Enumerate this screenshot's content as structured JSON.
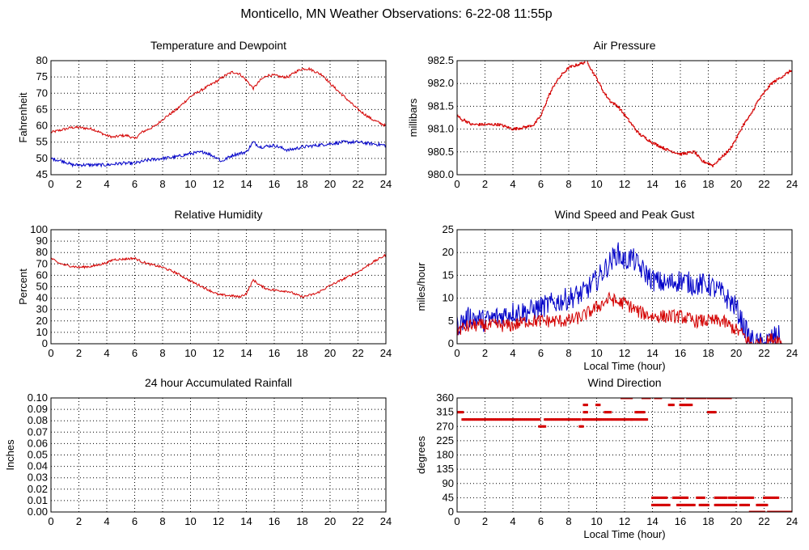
{
  "page": {
    "title": "Monticello, MN Weather Observations: 6-22-08 11:55p",
    "colors": {
      "red": "#d40000",
      "blue": "#0000c8",
      "grid": "#000000"
    }
  },
  "chart_data": [
    {
      "id": "temperature",
      "type": "line",
      "title": "Temperature and Dewpoint",
      "xlabel": "",
      "ylabel": "Fahrenheit",
      "xlim": [
        0,
        24
      ],
      "ylim": [
        45,
        80
      ],
      "xticks": [
        0,
        2,
        4,
        6,
        8,
        10,
        12,
        14,
        16,
        18,
        20,
        22,
        24
      ],
      "yticks": [
        45,
        50,
        55,
        60,
        65,
        70,
        75,
        80
      ],
      "grid": true,
      "legend": "none",
      "series": [
        {
          "color": "#d40000",
          "style": "line",
          "noise": 0.4,
          "x": [
            0,
            0.5,
            1,
            1.5,
            2,
            3,
            4,
            4.5,
            5,
            5.5,
            6,
            6.5,
            7,
            7.5,
            8,
            8.5,
            9,
            9.5,
            10,
            11,
            12,
            12.5,
            13,
            13.5,
            14,
            14.5,
            15,
            15.5,
            16,
            16.5,
            17,
            17.5,
            18,
            18.5,
            19,
            19.5,
            20,
            20.5,
            21,
            21.5,
            22,
            22.5,
            23,
            23.5,
            24
          ],
          "y": [
            58,
            58.5,
            59,
            59.5,
            59.5,
            59,
            57,
            56.5,
            57,
            57,
            56,
            58,
            59,
            60,
            62,
            63.5,
            65,
            67,
            69,
            71.5,
            74,
            75.5,
            76.5,
            76,
            74,
            71.5,
            74,
            75.5,
            75.5,
            75,
            75,
            76.5,
            77.5,
            77.5,
            76.5,
            75.5,
            73,
            71,
            69,
            67,
            65,
            63.5,
            62,
            61,
            60
          ]
        },
        {
          "color": "#0000c8",
          "style": "line",
          "noise": 0.5,
          "x": [
            0,
            1,
            1.5,
            2,
            3,
            4,
            5,
            6,
            7,
            8,
            9,
            10,
            11,
            12,
            12.2,
            13,
            14,
            14.5,
            15,
            16,
            17,
            18,
            19,
            20,
            21,
            22,
            23,
            24
          ],
          "y": [
            50,
            49,
            48,
            48,
            48,
            48,
            48.5,
            48.5,
            49.5,
            50,
            50.5,
            51.5,
            52,
            50,
            49,
            51,
            52,
            55,
            53.5,
            54,
            52.5,
            53.5,
            54,
            54.5,
            55,
            55,
            54.5,
            54
          ]
        }
      ]
    },
    {
      "id": "pressure",
      "type": "line",
      "title": "Air Pressure",
      "xlabel": "",
      "ylabel": "millibars",
      "xlim": [
        0,
        24
      ],
      "ylim": [
        980.0,
        982.5
      ],
      "xticks": [
        0,
        2,
        4,
        6,
        8,
        10,
        12,
        14,
        16,
        18,
        20,
        22,
        24
      ],
      "yticks": [
        980.0,
        980.5,
        981.0,
        981.5,
        982.0,
        982.5
      ],
      "ytick_labels": [
        "980.0",
        "980.5",
        "981.0",
        "981.5",
        "982.0",
        "982.5"
      ],
      "grid": true,
      "legend": "none",
      "series": [
        {
          "color": "#d40000",
          "style": "step",
          "noise": 0.03,
          "x": [
            0,
            0.3,
            0.5,
            1,
            2,
            3,
            4,
            5,
            5.5,
            6,
            6.5,
            7,
            7.5,
            8,
            8.5,
            9,
            9.3,
            9.6,
            10,
            10.5,
            11,
            11.5,
            12,
            12.5,
            13,
            13.5,
            14,
            15,
            16,
            17,
            17.5,
            18,
            18.3,
            19,
            19.5,
            20,
            20.5,
            21,
            21.5,
            22,
            22.5,
            23,
            23.5,
            24
          ],
          "y": [
            981.3,
            981.2,
            981.2,
            981.1,
            981.1,
            981.1,
            981.0,
            981.05,
            981.1,
            981.3,
            981.7,
            982.0,
            982.2,
            982.35,
            982.4,
            982.45,
            982.5,
            982.3,
            982.1,
            981.8,
            981.6,
            981.5,
            981.3,
            981.1,
            980.9,
            980.8,
            980.7,
            980.55,
            980.45,
            980.5,
            980.3,
            980.25,
            980.2,
            980.4,
            980.55,
            980.8,
            981.1,
            981.3,
            981.6,
            981.8,
            982.0,
            982.1,
            982.2,
            982.3
          ]
        }
      ]
    },
    {
      "id": "humidity",
      "type": "line",
      "title": "Relative Humidity",
      "xlabel": "",
      "ylabel": "Percent",
      "xlim": [
        0,
        24
      ],
      "ylim": [
        0,
        100
      ],
      "xticks": [
        0,
        2,
        4,
        6,
        8,
        10,
        12,
        14,
        16,
        18,
        20,
        22,
        24
      ],
      "yticks": [
        0,
        10,
        20,
        30,
        40,
        50,
        60,
        70,
        80,
        90,
        100
      ],
      "grid": true,
      "legend": "none",
      "series": [
        {
          "color": "#d40000",
          "style": "line",
          "noise": 1.0,
          "x": [
            0,
            0.5,
            1,
            2,
            3,
            4,
            4.5,
            5,
            6,
            6.5,
            7,
            8,
            9,
            10,
            11,
            12,
            13,
            13.5,
            14,
            14.5,
            15,
            15.5,
            16,
            17,
            18,
            19,
            20,
            21,
            22,
            23,
            24
          ],
          "y": [
            75,
            71,
            69,
            67,
            68,
            71,
            74,
            74,
            75,
            72,
            70,
            67,
            62,
            55,
            49,
            43,
            42,
            41,
            44,
            56,
            51,
            48,
            47,
            46,
            41,
            44,
            51,
            57,
            63,
            71,
            78
          ]
        }
      ]
    },
    {
      "id": "wind_speed",
      "type": "line",
      "title": "Wind Speed and Peak Gust",
      "xlabel": "Local Time (hour)",
      "ylabel": "miles/hour",
      "xlim": [
        0,
        24
      ],
      "ylim": [
        0,
        25
      ],
      "xticks": [
        0,
        2,
        4,
        6,
        8,
        10,
        12,
        14,
        16,
        18,
        20,
        22,
        24
      ],
      "yticks": [
        0,
        5,
        10,
        15,
        20,
        25
      ],
      "grid": true,
      "legend": "none",
      "series": [
        {
          "color": "#0000c8",
          "style": "line",
          "noise": 2.5,
          "x": [
            0,
            0.5,
            1,
            2,
            3,
            4,
            5,
            6,
            7,
            8,
            9,
            10,
            11,
            11.5,
            12,
            12.5,
            13,
            14,
            15,
            16,
            17,
            18,
            19,
            20,
            20.5,
            21,
            21.5,
            22,
            22.5,
            23,
            23.3
          ],
          "y": [
            4,
            5,
            6,
            5,
            6,
            7,
            7,
            8,
            9,
            10,
            11,
            14,
            18,
            20,
            18,
            19,
            17,
            14,
            13,
            14,
            13,
            13,
            11,
            8,
            4,
            1,
            0,
            0,
            1,
            2,
            0
          ]
        },
        {
          "color": "#d40000",
          "style": "line",
          "noise": 1.5,
          "x": [
            0,
            1,
            2,
            3,
            4,
            5,
            6,
            7,
            8,
            9,
            10,
            10.5,
            11,
            11.5,
            12,
            12.5,
            13,
            14,
            15,
            16,
            17,
            18,
            19,
            19.5,
            20,
            20.5,
            21,
            21.5,
            22,
            22.5,
            23,
            23.3
          ],
          "y": [
            3,
            4,
            4,
            4,
            4,
            5,
            5,
            5,
            5,
            6,
            8,
            9,
            10,
            9,
            9,
            8,
            7,
            6,
            6,
            6,
            5,
            5,
            5,
            4,
            3,
            2,
            0,
            0,
            0,
            1,
            1,
            0
          ]
        }
      ]
    },
    {
      "id": "rainfall",
      "type": "line",
      "title": "24 hour Accumulated Rainfall",
      "xlabel": "",
      "ylabel": "Inches",
      "xlim": [
        0,
        24
      ],
      "ylim": [
        0,
        0.1
      ],
      "xticks": [
        0,
        2,
        4,
        6,
        8,
        10,
        12,
        14,
        16,
        18,
        20,
        22,
        24
      ],
      "yticks": [
        0.0,
        0.01,
        0.02,
        0.03,
        0.04,
        0.05,
        0.06,
        0.07,
        0.08,
        0.09,
        0.1
      ],
      "ytick_labels": [
        "0.00",
        "0.01",
        "0.02",
        "0.03",
        "0.04",
        "0.05",
        "0.06",
        "0.07",
        "0.08",
        "0.09",
        "0.10"
      ],
      "grid": true,
      "legend": "none",
      "series": [
        {
          "color": "#d40000",
          "style": "line",
          "noise": 0,
          "x": [
            0,
            24
          ],
          "y": [
            0,
            0
          ]
        }
      ]
    },
    {
      "id": "wind_direction",
      "type": "scatter",
      "title": "Wind Direction",
      "xlabel": "Local Time (hour)",
      "ylabel": "degrees",
      "xlim": [
        0,
        24
      ],
      "ylim": [
        0,
        360
      ],
      "xticks": [
        0,
        2,
        4,
        6,
        8,
        10,
        12,
        14,
        16,
        18,
        20,
        22,
        24
      ],
      "yticks": [
        0,
        45,
        90,
        135,
        180,
        225,
        270,
        315,
        360
      ],
      "grid": true,
      "legend": "none",
      "series": [
        {
          "color": "#d40000",
          "style": "scatter",
          "noise": 0,
          "segments": [
            {
              "x0": 0.0,
              "x1": 0.4,
              "y": 315
            },
            {
              "x0": 0.4,
              "x1": 5.9,
              "y": 292
            },
            {
              "x0": 5.9,
              "x1": 6.3,
              "y": 270
            },
            {
              "x0": 6.3,
              "x1": 8.8,
              "y": 292
            },
            {
              "x0": 8.8,
              "x1": 9.0,
              "y": 270
            },
            {
              "x0": 9.0,
              "x1": 10.2,
              "y": 292
            },
            {
              "x0": 9.1,
              "x1": 9.3,
              "y": 315
            },
            {
              "x0": 9.1,
              "x1": 9.3,
              "y": 338
            },
            {
              "x0": 10.0,
              "x1": 10.2,
              "y": 338
            },
            {
              "x0": 10.2,
              "x1": 12.5,
              "y": 292
            },
            {
              "x0": 10.6,
              "x1": 11.0,
              "y": 315
            },
            {
              "x0": 11.8,
              "x1": 12.5,
              "y": 360
            },
            {
              "x0": 12.5,
              "x1": 13.6,
              "y": 292
            },
            {
              "x0": 12.8,
              "x1": 13.4,
              "y": 315
            },
            {
              "x0": 13.3,
              "x1": 13.8,
              "y": 360
            },
            {
              "x0": 14.2,
              "x1": 14.6,
              "y": 360
            },
            {
              "x0": 14.0,
              "x1": 15.0,
              "y": 45
            },
            {
              "x0": 14.0,
              "x1": 15.2,
              "y": 22
            },
            {
              "x0": 15.2,
              "x1": 15.5,
              "y": 338
            },
            {
              "x0": 15.4,
              "x1": 16.2,
              "y": 360
            },
            {
              "x0": 15.5,
              "x1": 16.5,
              "y": 45
            },
            {
              "x0": 16.0,
              "x1": 16.8,
              "y": 338
            },
            {
              "x0": 15.8,
              "x1": 17.0,
              "y": 22
            },
            {
              "x0": 16.5,
              "x1": 17.8,
              "y": 360
            },
            {
              "x0": 17.2,
              "x1": 17.7,
              "y": 45
            },
            {
              "x0": 17.4,
              "x1": 18.0,
              "y": 22
            },
            {
              "x0": 18.0,
              "x1": 18.5,
              "y": 315
            },
            {
              "x0": 18.0,
              "x1": 19.6,
              "y": 360
            },
            {
              "x0": 18.5,
              "x1": 19.3,
              "y": 45
            },
            {
              "x0": 18.5,
              "x1": 20.0,
              "y": 22
            },
            {
              "x0": 19.5,
              "x1": 21.2,
              "y": 45
            },
            {
              "x0": 20.3,
              "x1": 20.9,
              "y": 22
            },
            {
              "x0": 21.0,
              "x1": 22.0,
              "y": 0
            },
            {
              "x0": 21.5,
              "x1": 22.2,
              "y": 22
            },
            {
              "x0": 22.0,
              "x1": 23.0,
              "y": 45
            },
            {
              "x0": 22.3,
              "x1": 24.0,
              "y": 0
            }
          ]
        }
      ]
    }
  ]
}
